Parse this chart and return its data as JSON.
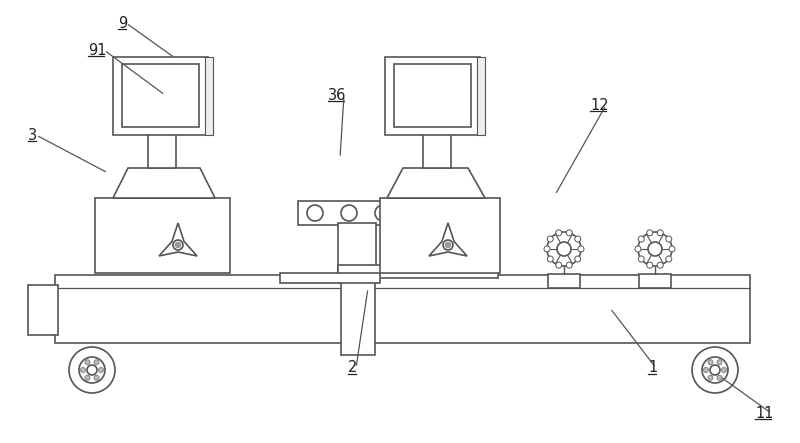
{
  "bg_color": "#ffffff",
  "lc": "#555555",
  "label_color": "#222222",
  "leaders": [
    [
      "9",
      118,
      420,
      175,
      385
    ],
    [
      "91",
      88,
      393,
      165,
      348
    ],
    [
      "3",
      28,
      308,
      108,
      270
    ],
    [
      "36",
      328,
      348,
      340,
      285
    ],
    [
      "2",
      348,
      75,
      368,
      155
    ],
    [
      "12",
      590,
      338,
      555,
      248
    ],
    [
      "1",
      648,
      75,
      610,
      135
    ],
    [
      "11",
      755,
      30,
      718,
      68
    ]
  ]
}
